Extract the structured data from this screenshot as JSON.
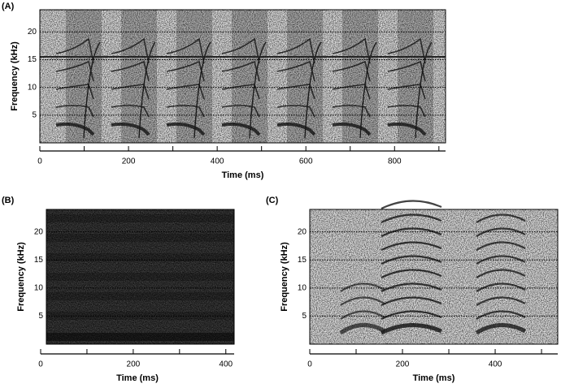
{
  "chart_data": [
    {
      "type": "spectrogram",
      "panel_label": "(A)",
      "xlabel": "Time (ms)",
      "ylabel": "Frequency (kHz)",
      "xlim": [
        0,
        915
      ],
      "ylim": [
        0,
        24
      ],
      "xticks": [
        0,
        200,
        400,
        600,
        800
      ],
      "x_minor_ticks": [
        100,
        300,
        500,
        700,
        900
      ],
      "yticks": [
        5,
        10,
        15,
        20
      ],
      "grid": true
    },
    {
      "type": "spectrogram",
      "panel_label": "(B)",
      "xlabel": "Time (ms)",
      "ylabel": "Frequency (kHz)",
      "xlim": [
        0,
        418
      ],
      "ylim": [
        0,
        24
      ],
      "xticks": [
        0,
        200,
        400
      ],
      "x_minor_ticks": [
        100,
        300
      ],
      "yticks": [
        5,
        10,
        15,
        20
      ],
      "grid": true
    },
    {
      "type": "spectrogram",
      "panel_label": "(C)",
      "xlabel": "Time (ms)",
      "ylabel": "Frequency (kHz)",
      "xlim": [
        0,
        535
      ],
      "ylim": [
        0,
        24
      ],
      "xticks": [
        0,
        200,
        400
      ],
      "x_minor_ticks": [
        100,
        300,
        500
      ],
      "yticks": [
        5,
        10,
        15,
        20
      ],
      "grid": true
    }
  ]
}
